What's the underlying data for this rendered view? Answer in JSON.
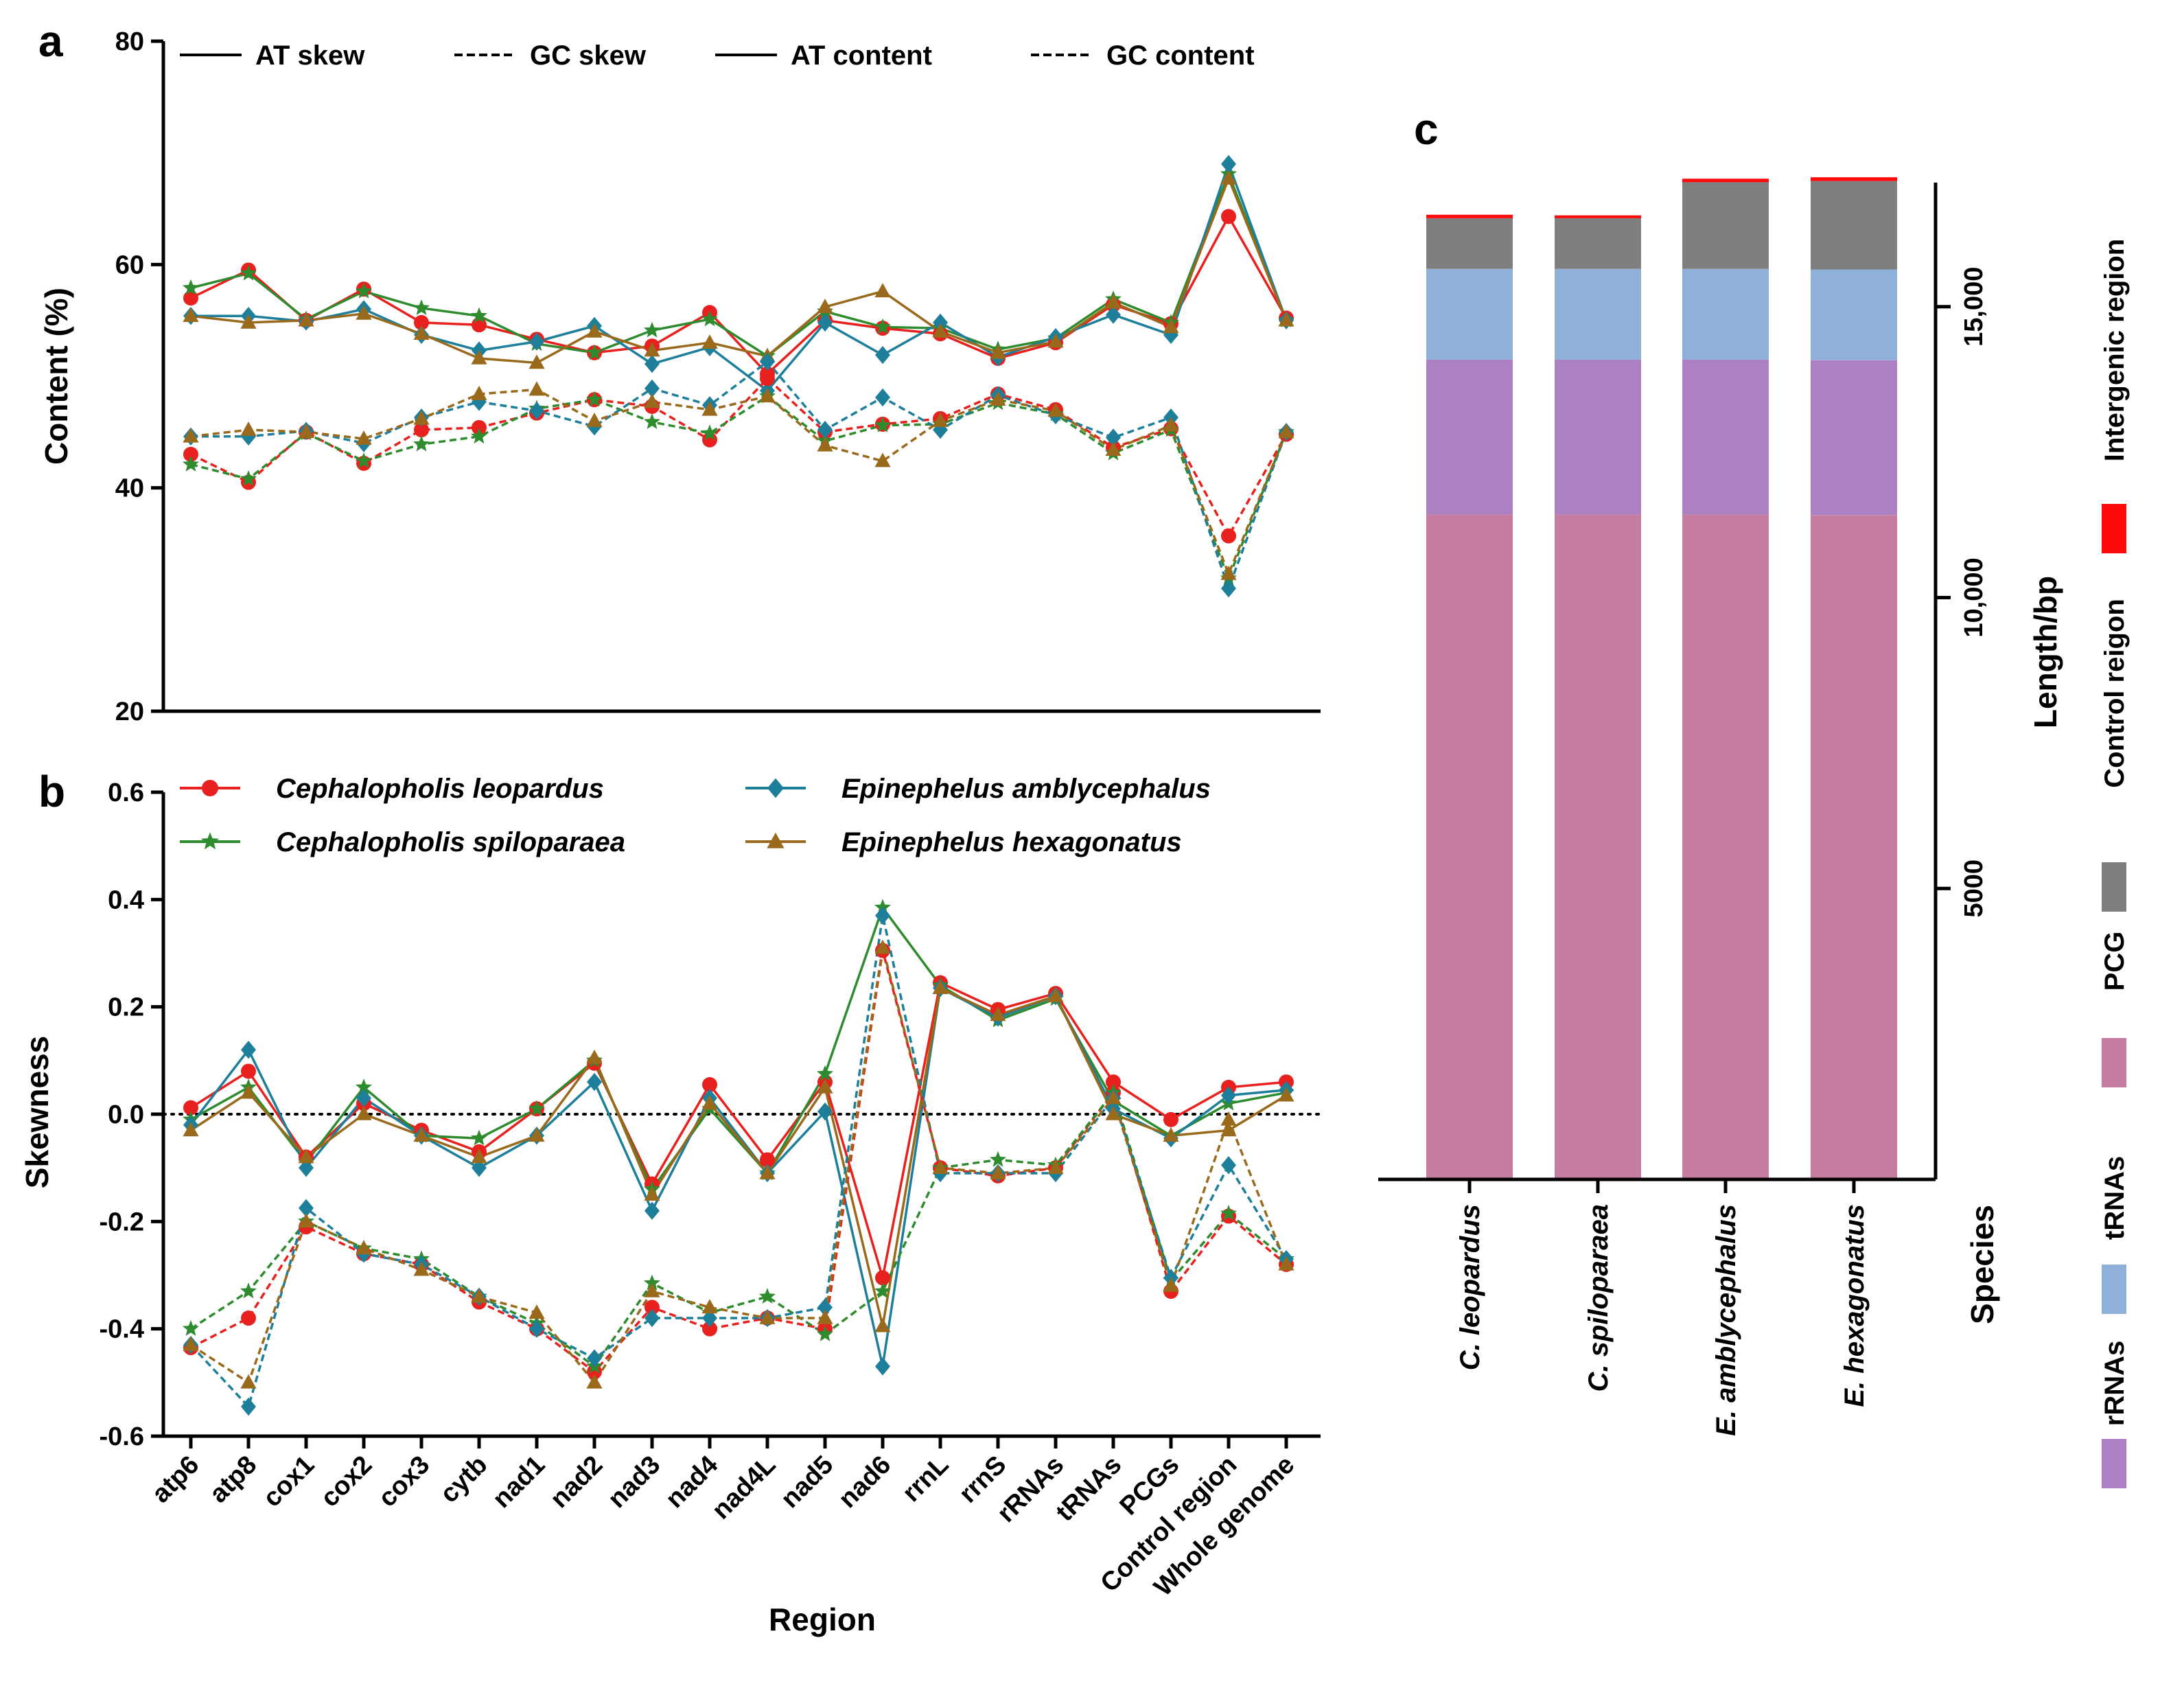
{
  "figure": {
    "panel_labels": [
      "a",
      "b",
      "c"
    ]
  },
  "chart_data": [
    {
      "id": "a",
      "type": "line",
      "ylabel": "Content (%)",
      "ylim": [
        20,
        80
      ],
      "yticks": [
        20,
        40,
        60,
        80
      ],
      "legend": [
        {
          "label": "AT skew",
          "style": "solid"
        },
        {
          "label": "GC skew",
          "style": "dashed"
        },
        {
          "label": "AT content",
          "style": "solid"
        },
        {
          "label": "GC content",
          "style": "dashed"
        }
      ],
      "categories": [
        "atp6",
        "atp8",
        "cox1",
        "cox2",
        "cox3",
        "cytb",
        "nad1",
        "nad2",
        "nad3",
        "nad4",
        "nad4L",
        "nad5",
        "nad6",
        "rrnL",
        "rrnS",
        "rRNAs",
        "tRNAs",
        "PCGs",
        "Control region",
        "Whole genome"
      ],
      "series": [
        {
          "name": "Cephalopholis leopardus",
          "metric": "AT content",
          "color": "#e8201e",
          "marker": "circle",
          "style": "solid",
          "values": [
            57.0,
            59.5,
            55.0,
            57.8,
            54.8,
            54.6,
            53.3,
            52.1,
            52.7,
            55.7,
            50.2,
            55.0,
            54.3,
            53.8,
            51.6,
            53.0,
            56.4,
            54.7,
            64.3,
            55.2
          ]
        },
        {
          "name": "Cephalopholis spiloparaea",
          "metric": "AT content",
          "color": "#2e8b2e",
          "marker": "star",
          "style": "solid",
          "values": [
            57.9,
            59.2,
            55.1,
            57.6,
            56.1,
            55.4,
            52.9,
            52.1,
            54.1,
            55.1,
            51.8,
            55.8,
            54.4,
            54.3,
            52.4,
            53.4,
            56.9,
            54.8,
            68.1,
            55.0
          ]
        },
        {
          "name": "Epinephelus amblycephalus",
          "metric": "AT content",
          "color": "#1e7f9a",
          "marker": "diamond",
          "style": "solid",
          "values": [
            55.4,
            55.4,
            54.9,
            56.0,
            53.7,
            52.3,
            53.1,
            54.5,
            51.1,
            52.6,
            48.7,
            54.8,
            51.9,
            54.8,
            51.7,
            53.5,
            55.5,
            53.7,
            69.0,
            55.0
          ]
        },
        {
          "name": "Epinephelus hexagonatus",
          "metric": "AT content",
          "color": "#9a6a1c",
          "marker": "triangle",
          "style": "solid",
          "values": [
            55.4,
            54.8,
            55.0,
            55.6,
            53.8,
            51.6,
            51.2,
            54.0,
            52.3,
            53.0,
            51.8,
            56.2,
            57.6,
            54.0,
            52.1,
            53.1,
            56.6,
            54.4,
            67.7,
            55.0
          ]
        },
        {
          "name": "Cephalopholis leopardus",
          "metric": "GC content",
          "color": "#e8201e",
          "marker": "circle",
          "style": "dashed",
          "values": [
            43.0,
            40.5,
            45.0,
            42.2,
            45.2,
            45.4,
            46.7,
            47.9,
            47.3,
            44.3,
            49.8,
            45.0,
            45.7,
            46.2,
            48.4,
            47.0,
            43.6,
            45.3,
            35.7,
            44.8
          ]
        },
        {
          "name": "Cephalopholis spiloparaea",
          "metric": "GC content",
          "color": "#2e8b2e",
          "marker": "star",
          "style": "dashed",
          "values": [
            42.1,
            40.8,
            44.9,
            42.4,
            43.9,
            44.6,
            47.1,
            47.9,
            45.9,
            44.9,
            48.2,
            44.2,
            45.6,
            45.7,
            47.6,
            46.6,
            43.1,
            45.2,
            31.9,
            45.0
          ]
        },
        {
          "name": "Epinephelus amblycephalus",
          "metric": "GC content",
          "color": "#1e7f9a",
          "marker": "diamond",
          "style": "dashed",
          "values": [
            44.6,
            44.6,
            45.1,
            44.0,
            46.3,
            47.7,
            46.9,
            45.5,
            48.9,
            47.4,
            51.3,
            45.2,
            48.1,
            45.2,
            48.3,
            46.5,
            44.5,
            46.3,
            31.0,
            45.0
          ]
        },
        {
          "name": "Epinephelus hexagonatus",
          "metric": "GC content",
          "color": "#9a6a1c",
          "marker": "triangle",
          "style": "dashed",
          "values": [
            44.6,
            45.2,
            45.0,
            44.4,
            46.2,
            48.4,
            48.8,
            46.0,
            47.7,
            47.0,
            48.2,
            43.8,
            42.4,
            46.0,
            47.9,
            46.9,
            43.4,
            45.6,
            32.3,
            45.0
          ]
        }
      ]
    },
    {
      "id": "b",
      "type": "line",
      "xlabel": "Region",
      "ylabel": "Skewness",
      "ylim": [
        -0.6,
        0.6
      ],
      "yticks": [
        -0.6,
        -0.4,
        -0.2,
        0.0,
        0.2,
        0.4,
        0.6
      ],
      "ytick_labels": [
        "-0.6",
        "-0.4",
        "-0.2",
        "0.0",
        "0.2",
        "0.4",
        "0.6"
      ],
      "reference_line": 0,
      "legend": [
        {
          "label": "Cephalopholis leopardus",
          "color": "#e8201e",
          "marker": "circle"
        },
        {
          "label": "Epinephelus amblycephalus",
          "color": "#1e7f9a",
          "marker": "diamond"
        },
        {
          "label": "Cephalopholis spiloparaea",
          "color": "#2e8b2e",
          "marker": "star"
        },
        {
          "label": "Epinephelus hexagonatus",
          "color": "#9a6a1c",
          "marker": "triangle"
        }
      ],
      "categories": [
        "atp6",
        "atp8",
        "cox1",
        "cox2",
        "cox3",
        "cytb",
        "nad1",
        "nad2",
        "nad3",
        "nad4",
        "nad4L",
        "nad5",
        "nad6",
        "rrnL",
        "rrnS",
        "rRNAs",
        "tRNAs",
        "PCGs",
        "Control region",
        "Whole genome"
      ],
      "series": [
        {
          "name": "Cephalopholis leopardus",
          "metric": "AT skew",
          "color": "#e8201e",
          "marker": "circle",
          "style": "solid",
          "values": [
            0.012,
            0.08,
            -0.08,
            0.02,
            -0.03,
            -0.07,
            0.01,
            0.095,
            -0.13,
            0.055,
            -0.085,
            0.06,
            -0.305,
            0.245,
            0.195,
            0.225,
            0.06,
            -0.01,
            0.05,
            0.06
          ]
        },
        {
          "name": "Cephalopholis spiloparaea",
          "metric": "AT skew",
          "color": "#2e8b2e",
          "marker": "star",
          "style": "solid",
          "values": [
            -0.01,
            0.05,
            -0.09,
            0.05,
            -0.04,
            -0.045,
            0.01,
            0.1,
            -0.14,
            0.01,
            -0.11,
            0.075,
            0.385,
            0.24,
            0.175,
            0.215,
            0.025,
            -0.04,
            0.02,
            0.04
          ]
        },
        {
          "name": "Epinephelus amblycephalus",
          "metric": "AT skew",
          "color": "#1e7f9a",
          "marker": "diamond",
          "style": "solid",
          "values": [
            -0.02,
            0.12,
            -0.1,
            0.03,
            -0.04,
            -0.1,
            -0.04,
            0.06,
            -0.18,
            0.03,
            -0.11,
            0.005,
            -0.47,
            0.235,
            0.18,
            0.22,
            0.01,
            -0.045,
            0.035,
            0.045
          ]
        },
        {
          "name": "Epinephelus hexagonatus",
          "metric": "AT skew",
          "color": "#9a6a1c",
          "marker": "triangle",
          "style": "solid",
          "values": [
            -0.03,
            0.04,
            -0.08,
            0.0,
            -0.04,
            -0.08,
            -0.04,
            0.105,
            -0.15,
            0.02,
            -0.11,
            0.05,
            -0.395,
            0.235,
            0.185,
            0.22,
            0.0,
            -0.04,
            -0.03,
            0.035
          ]
        },
        {
          "name": "Cephalopholis leopardus",
          "metric": "GC skew",
          "color": "#e8201e",
          "marker": "circle",
          "style": "dashed",
          "values": [
            -0.435,
            -0.38,
            -0.21,
            -0.26,
            -0.28,
            -0.35,
            -0.4,
            -0.48,
            -0.36,
            -0.4,
            -0.38,
            -0.4,
            0.305,
            -0.1,
            -0.115,
            -0.1,
            0.04,
            -0.33,
            -0.19,
            -0.28
          ]
        },
        {
          "name": "Cephalopholis spiloparaea",
          "metric": "GC skew",
          "color": "#2e8b2e",
          "marker": "star",
          "style": "dashed",
          "values": [
            -0.4,
            -0.33,
            -0.2,
            -0.25,
            -0.27,
            -0.34,
            -0.39,
            -0.47,
            -0.315,
            -0.37,
            -0.34,
            -0.41,
            -0.33,
            -0.1,
            -0.085,
            -0.095,
            0.04,
            -0.31,
            -0.185,
            -0.27
          ]
        },
        {
          "name": "Epinephelus amblycephalus",
          "metric": "GC skew",
          "color": "#1e7f9a",
          "marker": "diamond",
          "style": "dashed",
          "values": [
            -0.43,
            -0.545,
            -0.175,
            -0.26,
            -0.28,
            -0.34,
            -0.4,
            -0.455,
            -0.38,
            -0.38,
            -0.38,
            -0.36,
            0.37,
            -0.11,
            -0.11,
            -0.11,
            0.03,
            -0.305,
            -0.095,
            -0.27
          ]
        },
        {
          "name": "Epinephelus hexagonatus",
          "metric": "GC skew",
          "color": "#9a6a1c",
          "marker": "triangle",
          "style": "dashed",
          "values": [
            -0.43,
            -0.5,
            -0.2,
            -0.25,
            -0.29,
            -0.34,
            -0.37,
            -0.5,
            -0.33,
            -0.36,
            -0.38,
            -0.38,
            0.31,
            -0.1,
            -0.11,
            -0.1,
            0.03,
            -0.32,
            -0.01,
            -0.28
          ]
        }
      ]
    },
    {
      "id": "c",
      "type": "bar",
      "stacked": true,
      "xlabel": "Species",
      "ylabel": "Length/bp",
      "ylim": [
        0,
        17000
      ],
      "yticks": [
        5000,
        10000,
        15000
      ],
      "ytick_labels": [
        "5000",
        "10,000",
        "15,000"
      ],
      "categories": [
        "C. leopardus",
        "C. spiloparaea",
        "E. amblycephalus",
        "E. hexagonatus"
      ],
      "series": [
        {
          "name": "PCG",
          "color": "#c47ca1",
          "values": [
            11430,
            11430,
            11430,
            11420
          ]
        },
        {
          "name": "rRNAs",
          "color": "#ad80c4",
          "values": [
            2660,
            2660,
            2660,
            2660
          ]
        },
        {
          "name": "tRNAs",
          "color": "#8fb0d8",
          "values": [
            1560,
            1560,
            1560,
            1560
          ]
        },
        {
          "name": "Control reigon",
          "color": "#7f7f7f",
          "values": [
            870,
            870,
            1490,
            1520
          ]
        },
        {
          "name": "Intergenic region",
          "color": "#ff0a0a",
          "values": [
            60,
            50,
            60,
            65
          ]
        }
      ],
      "legend_order": [
        "rRNAs",
        "tRNAs",
        "PCG",
        "Control reigon",
        "Intergenic region"
      ]
    }
  ]
}
